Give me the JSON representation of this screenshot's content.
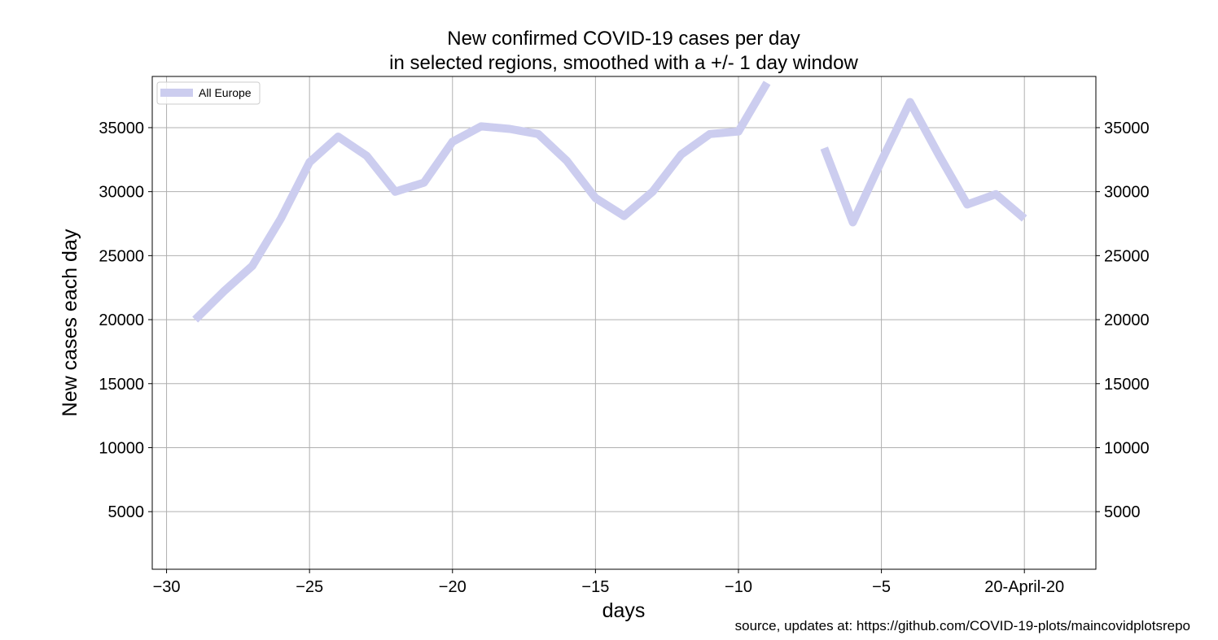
{
  "chart_data": {
    "type": "line",
    "title": [
      "New confirmed COVID-19 cases per day",
      "in selected regions, smoothed with a +/- 1 day window"
    ],
    "xlabel": "days",
    "ylabel": "New cases each day",
    "source": "source, updates at: https://github.com/COVID-19-plots/maincovidplotsrepo",
    "xlim": [
      -30.5,
      2.5
    ],
    "ylim": [
      500,
      39000
    ],
    "x_ticks": [
      -30,
      -25,
      -20,
      -15,
      -10,
      -5,
      0
    ],
    "x_tick_labels": [
      "−30",
      "−25",
      "−20",
      "−15",
      "−10",
      "−5",
      "20-April-20"
    ],
    "y_ticks": [
      5000,
      10000,
      15000,
      20000,
      25000,
      30000,
      35000
    ],
    "y_tick_labels": [
      "5000",
      "10000",
      "15000",
      "20000",
      "25000",
      "30000",
      "35000"
    ],
    "right_axis_ticks": true,
    "grid": true,
    "legend_position": "top-left",
    "series": [
      {
        "name": "All Europe",
        "color": "#cccdef",
        "x": [
          -29,
          -28,
          -27,
          -26,
          -25,
          -24,
          -23,
          -22,
          -21,
          -20,
          -19,
          -18,
          -17,
          -16,
          -15,
          -14,
          -13,
          -12,
          -11,
          -10,
          -9,
          -8,
          -7,
          -6,
          -5,
          -4,
          -3,
          -2,
          -1,
          0
        ],
        "y": [
          20000,
          22200,
          24200,
          27900,
          32300,
          34300,
          32800,
          30000,
          30700,
          33900,
          35100,
          34900,
          34500,
          32400,
          29500,
          28100,
          30000,
          32900,
          34500,
          34700,
          38500,
          null,
          33400,
          27600,
          32400,
          37000,
          32900,
          29000,
          29800,
          27900
        ]
      }
    ]
  }
}
